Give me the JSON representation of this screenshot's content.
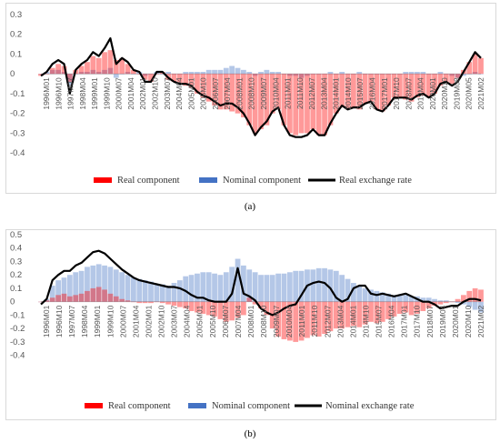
{
  "chart_data": [
    {
      "id": "a",
      "type": "bar+line",
      "caption": "(a)",
      "yticks": [
        0.3,
        0.2,
        0.1,
        0,
        -0.1,
        -0.2,
        -0.3,
        -0.4
      ],
      "ylim": [
        -0.45,
        0.3
      ],
      "xticks": [
        "1996M01",
        "1996M10",
        "1997M07",
        "1998M04",
        "1999M01",
        "1999M10",
        "2000M07",
        "2001M04",
        "2002M01",
        "2002M10",
        "2003M07",
        "2004M04",
        "2005M01",
        "2005M10",
        "2006M07",
        "2007M04",
        "2008M01",
        "2008M10",
        "2009M07",
        "2010M04",
        "2011M01",
        "2011M10",
        "2012M07",
        "2013M04",
        "2014M01",
        "2014M10",
        "2015M07",
        "2016M04",
        "2017M01",
        "2017M10",
        "2018M07",
        "2019M04",
        "2020M01",
        "2020M10",
        "2019M08",
        "2020M05",
        "2021M02"
      ],
      "legend": [
        "Real component",
        "Nominal component",
        "Real exchange rate"
      ],
      "colors": {
        "real": "#ff0000",
        "nominal": "#4472c4",
        "rate": "#000000"
      },
      "x_months": [
        0,
        4,
        8,
        12,
        16,
        20,
        24,
        28,
        32,
        36,
        40,
        44,
        48,
        52,
        56,
        60,
        64,
        68,
        72,
        76,
        80,
        84,
        88,
        92,
        96,
        100,
        104,
        108,
        112,
        116,
        120,
        124,
        128,
        132,
        136,
        140,
        144,
        148,
        152,
        156,
        160,
        164,
        168,
        172,
        176,
        180,
        184,
        188,
        192,
        196,
        200,
        204,
        208,
        212,
        216,
        220,
        224,
        228,
        232,
        236,
        240,
        244,
        248,
        252,
        256,
        260,
        264,
        268,
        272,
        276,
        280,
        284,
        288,
        292,
        296,
        300,
        304
      ],
      "real_component": [
        -0.01,
        0,
        0.03,
        0.05,
        0.04,
        -0.04,
        0.02,
        0.04,
        0.06,
        0.09,
        0.08,
        0.11,
        0.12,
        0.07,
        0.08,
        0.05,
        0.02,
        0,
        -0.03,
        -0.04,
        0,
        0.01,
        -0.03,
        -0.04,
        -0.05,
        -0.06,
        -0.07,
        -0.1,
        -0.12,
        -0.14,
        -0.16,
        -0.18,
        -0.18,
        -0.19,
        -0.2,
        -0.22,
        -0.26,
        -0.3,
        -0.28,
        -0.26,
        -0.2,
        -0.18,
        -0.26,
        -0.3,
        -0.31,
        -0.3,
        -0.3,
        -0.28,
        -0.31,
        -0.31,
        -0.26,
        -0.2,
        -0.17,
        -0.18,
        -0.17,
        -0.18,
        -0.15,
        -0.14,
        -0.18,
        -0.19,
        -0.16,
        -0.12,
        -0.12,
        -0.13,
        -0.14,
        -0.12,
        -0.11,
        -0.12,
        -0.1,
        -0.06,
        -0.04,
        -0.05,
        -0.02,
        0.02,
        0.06,
        0.1,
        0.08
      ],
      "nominal_component": [
        0,
        0.01,
        0.02,
        0.02,
        0.01,
        -0.06,
        0,
        0.01,
        0.01,
        0.02,
        0.01,
        0.02,
        0.03,
        -0.02,
        0,
        0.01,
        0,
        0.01,
        -0.01,
        0,
        0.01,
        0,
        0.01,
        0,
        0,
        0.01,
        0.01,
        0.01,
        0.01,
        0.02,
        0.02,
        0.02,
        0.03,
        0.04,
        0.03,
        0.02,
        0.01,
        -0.01,
        0.01,
        0.02,
        0.01,
        0.01,
        0,
        -0.01,
        -0.01,
        -0.02,
        -0.01,
        0,
        0,
        0,
        0.01,
        0,
        0.01,
        0,
        0,
        0.01,
        0,
        0,
        0,
        0,
        0,
        0,
        0,
        0.01,
        0.01,
        0.01,
        0.01,
        0,
        0,
        0.01,
        0,
        -0.01,
        -0.02,
        -0.01,
        0,
        0.01,
        0
      ],
      "real_exchange_rate": [
        -0.01,
        0.01,
        0.05,
        0.07,
        0.05,
        -0.1,
        0.02,
        0.05,
        0.07,
        0.11,
        0.09,
        0.13,
        0.18,
        0.05,
        0.08,
        0.06,
        0.02,
        0.01,
        -0.04,
        -0.04,
        0.01,
        0.01,
        -0.02,
        -0.04,
        -0.05,
        -0.05,
        -0.06,
        -0.09,
        -0.11,
        -0.12,
        -0.14,
        -0.16,
        -0.15,
        -0.15,
        -0.17,
        -0.2,
        -0.25,
        -0.31,
        -0.27,
        -0.24,
        -0.19,
        -0.17,
        -0.26,
        -0.31,
        -0.32,
        -0.32,
        -0.31,
        -0.28,
        -0.31,
        -0.31,
        -0.25,
        -0.2,
        -0.16,
        -0.18,
        -0.17,
        -0.17,
        -0.15,
        -0.14,
        -0.18,
        -0.19,
        -0.16,
        -0.12,
        -0.12,
        -0.12,
        -0.13,
        -0.11,
        -0.1,
        -0.12,
        -0.1,
        -0.05,
        -0.04,
        -0.06,
        -0.04,
        0.01,
        0.06,
        0.11,
        0.08
      ]
    },
    {
      "id": "b",
      "type": "bar+line",
      "caption": "(b)",
      "yticks": [
        0.5,
        0.4,
        0.3,
        0.2,
        0.1,
        0,
        -0.1,
        -0.2,
        -0.3,
        -0.4
      ],
      "ylim": [
        -0.45,
        0.5
      ],
      "xticks": [
        "1996M01",
        "1996M10",
        "1997M07",
        "1998M04",
        "1999M01",
        "1999M10",
        "2000M07",
        "2001M04",
        "2002M01",
        "2002M10",
        "2003M07",
        "2004M04",
        "2005M01",
        "2005M10",
        "2006M07",
        "2007M04",
        "2008M01",
        "2008M10",
        "2009M07",
        "2010M04",
        "2011M01",
        "2011M10",
        "2012M07",
        "2013M04",
        "2014M01",
        "2014M10",
        "2015M07",
        "2016M04",
        "2017M01",
        "2017M10",
        "2018M07",
        "2019M04",
        "2020M01",
        "2020M10",
        "2021M02"
      ],
      "legend": [
        "Real component",
        "Nominal component",
        "Nominal exchange rate"
      ],
      "colors": {
        "real": "#ff0000",
        "nominal": "#4472c4",
        "rate": "#000000"
      },
      "x_months": [
        0,
        4,
        8,
        12,
        16,
        20,
        24,
        28,
        32,
        36,
        40,
        44,
        48,
        52,
        56,
        60,
        64,
        68,
        72,
        76,
        80,
        84,
        88,
        92,
        96,
        100,
        104,
        108,
        112,
        116,
        120,
        124,
        128,
        132,
        136,
        140,
        144,
        148,
        152,
        156,
        160,
        164,
        168,
        172,
        176,
        180,
        184,
        188,
        192,
        196,
        200,
        204,
        208,
        212,
        216,
        220,
        224,
        228,
        232,
        236,
        240,
        244,
        248,
        252,
        256,
        260,
        264,
        268,
        272,
        276,
        280,
        284,
        288,
        292,
        296,
        300,
        304
      ],
      "real_component": [
        0,
        0.01,
        0.03,
        0.05,
        0.06,
        0.04,
        0.05,
        0.06,
        0.08,
        0.1,
        0.11,
        0.09,
        0.06,
        0.04,
        0.02,
        0.01,
        0,
        -0.01,
        -0.01,
        -0.01,
        0,
        -0.01,
        -0.02,
        -0.03,
        -0.04,
        -0.05,
        -0.07,
        -0.08,
        -0.09,
        -0.1,
        -0.11,
        -0.13,
        -0.15,
        -0.14,
        -0.12,
        -0.1,
        0.03,
        -0.02,
        -0.05,
        -0.1,
        -0.2,
        -0.26,
        -0.28,
        -0.29,
        -0.3,
        -0.29,
        -0.27,
        -0.25,
        -0.26,
        -0.24,
        -0.22,
        -0.2,
        -0.2,
        -0.19,
        -0.18,
        -0.19,
        -0.17,
        -0.15,
        -0.16,
        -0.15,
        -0.13,
        -0.11,
        -0.09,
        -0.08,
        -0.1,
        -0.09,
        -0.07,
        -0.05,
        -0.03,
        -0.02,
        -0.01,
        0,
        0.02,
        0.05,
        0.08,
        0.1,
        0.09
      ],
      "nominal_component": [
        0,
        0.02,
        0.12,
        0.16,
        0.18,
        0.2,
        0.22,
        0.23,
        0.26,
        0.27,
        0.28,
        0.27,
        0.26,
        0.24,
        0.22,
        0.2,
        0.18,
        0.17,
        0.16,
        0.15,
        0.13,
        0.13,
        0.12,
        0.14,
        0.16,
        0.19,
        0.2,
        0.21,
        0.22,
        0.22,
        0.21,
        0.2,
        0.22,
        0.26,
        0.32,
        0.27,
        0.24,
        0.22,
        0.2,
        0.2,
        0.2,
        0.21,
        0.21,
        0.22,
        0.23,
        0.23,
        0.24,
        0.24,
        0.25,
        0.25,
        0.24,
        0.23,
        0.2,
        0.17,
        0.14,
        0.12,
        0.1,
        0.09,
        0.08,
        0.07,
        0.06,
        0.05,
        0.05,
        0.05,
        0.04,
        0.04,
        0.03,
        0.03,
        0.02,
        0.01,
        0.01,
        0,
        -0.01,
        -0.02,
        -0.04,
        -0.06,
        -0.08
      ],
      "nominal_exchange_rate": [
        -0.02,
        0.02,
        0.16,
        0.2,
        0.23,
        0.23,
        0.27,
        0.29,
        0.33,
        0.37,
        0.38,
        0.36,
        0.32,
        0.28,
        0.24,
        0.21,
        0.18,
        0.16,
        0.15,
        0.14,
        0.13,
        0.12,
        0.11,
        0.11,
        0.1,
        0.08,
        0.05,
        0.03,
        0.03,
        0.01,
        0,
        0,
        0,
        0.06,
        0.25,
        0.06,
        0.04,
        0.01,
        -0.05,
        -0.08,
        -0.1,
        -0.08,
        -0.05,
        -0.03,
        -0.02,
        0.05,
        0.12,
        0.14,
        0.15,
        0.14,
        0.1,
        0.03,
        0,
        0.02,
        0.1,
        0.12,
        0.12,
        0.06,
        0.05,
        0.06,
        0.05,
        0.04,
        0.05,
        0.06,
        0.04,
        0.02,
        0,
        0,
        -0.02,
        -0.05,
        -0.04,
        -0.03,
        -0.03,
        0,
        0.02,
        0.02,
        0.01
      ]
    }
  ]
}
